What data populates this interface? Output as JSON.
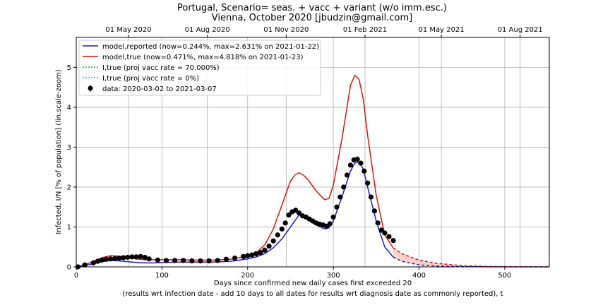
{
  "chart_data": {
    "type": "line",
    "title_line1": "Portugal, Scenario= seas. + vacc + variant (w/o imm.esc.)",
    "title_line2": "Vienna, October 2020 [jbudzin@gmail.com]",
    "xlabel_line1": "Days since confirmed new daily cases first exceeded 20",
    "xlabel_line2": "(results wrt infection date - add 10 days to all dates for results wrt diagnosis date as commonly reported), t",
    "ylabel": "Infected, I/N [% of population] (lin.scale-zoom)",
    "xlim": [
      0,
      552
    ],
    "ylim": [
      0,
      5.75
    ],
    "grid": true,
    "legend_position": "top-left",
    "x_ticks": [
      0,
      100,
      200,
      300,
      400,
      500
    ],
    "x_tick_labels": [
      "0",
      "100",
      "200",
      "300",
      "400",
      "500"
    ],
    "y_ticks": [
      0,
      1,
      2,
      3,
      4,
      5
    ],
    "y_tick_labels": [
      "0",
      "1",
      "2",
      "3",
      "4",
      "5"
    ],
    "top_axis_ticks": [
      61,
      153,
      245,
      337,
      426,
      518
    ],
    "top_axis_labels": [
      "01 May 2020",
      "01 Aug 2020",
      "01 Nov 2020",
      "01 Feb 2021",
      "01 May 2021",
      "01 Aug 2021"
    ],
    "legend": [
      "model,reported (now=0.244%, max=2.631% on 2021-01-22)",
      "model,true (now=0.471%, max=4.818% on 2021-01-23)",
      "I,true (proj vacc rate = 70.000%)",
      "I,true (proj vacc rate = 0%)",
      "data: 2020-03-02 to 2021-03-07"
    ],
    "colors": {
      "reported": "#1a1acc",
      "true": "#dd1111",
      "vacc70": "#11aa11",
      "vacc0": "#11bbdd",
      "data": "#000000",
      "projection_band": "#f7c9c0",
      "grid": "#b0b0b0"
    },
    "series": [
      {
        "name": "model,reported",
        "x": [
          0,
          10,
          20,
          30,
          40,
          50,
          60,
          70,
          80,
          90,
          100,
          120,
          140,
          160,
          180,
          200,
          210,
          220,
          230,
          240,
          250,
          255,
          260,
          265,
          270,
          280,
          290,
          295,
          300,
          310,
          320,
          325,
          330,
          335,
          340,
          350,
          360,
          370
        ],
        "y": [
          0,
          0.03,
          0.08,
          0.13,
          0.16,
          0.15,
          0.13,
          0.11,
          0.1,
          0.1,
          0.11,
          0.12,
          0.12,
          0.12,
          0.14,
          0.2,
          0.25,
          0.33,
          0.48,
          0.7,
          1.0,
          1.15,
          1.3,
          1.28,
          1.18,
          1.05,
          0.95,
          0.98,
          1.15,
          1.75,
          2.4,
          2.6,
          2.63,
          2.45,
          2.0,
          1.15,
          0.5,
          0.244
        ]
      },
      {
        "name": "model,true",
        "x": [
          0,
          10,
          20,
          30,
          40,
          50,
          60,
          70,
          80,
          90,
          100,
          120,
          140,
          160,
          180,
          200,
          210,
          220,
          230,
          240,
          250,
          255,
          260,
          265,
          270,
          280,
          290,
          295,
          300,
          310,
          320,
          325,
          330,
          335,
          340,
          350,
          360,
          370
        ],
        "y": [
          0,
          0.05,
          0.14,
          0.23,
          0.28,
          0.27,
          0.23,
          0.2,
          0.18,
          0.18,
          0.18,
          0.18,
          0.17,
          0.17,
          0.19,
          0.27,
          0.35,
          0.55,
          0.95,
          1.55,
          2.15,
          2.3,
          2.36,
          2.3,
          2.2,
          1.9,
          1.68,
          1.72,
          2.05,
          3.2,
          4.55,
          4.8,
          4.7,
          4.2,
          3.3,
          1.8,
          0.8,
          0.471
        ]
      },
      {
        "name": "model,reported projection",
        "x": [
          370,
          380,
          400,
          420,
          450,
          480,
          520,
          552
        ],
        "y": [
          0.244,
          0.14,
          0.05,
          0.02,
          0.006,
          0.002,
          0.0,
          0.0
        ]
      },
      {
        "name": "model,true projection",
        "x": [
          370,
          380,
          400,
          420,
          450,
          480,
          520,
          552
        ],
        "y": [
          0.471,
          0.33,
          0.17,
          0.09,
          0.03,
          0.01,
          0.002,
          0.0
        ]
      },
      {
        "name": "data",
        "x": [
          2,
          10,
          20,
          25,
          30,
          35,
          40,
          45,
          50,
          55,
          60,
          65,
          70,
          75,
          80,
          85,
          95,
          105,
          115,
          125,
          135,
          145,
          155,
          165,
          175,
          185,
          195,
          200,
          205,
          210,
          215,
          220,
          225,
          230,
          235,
          240,
          244,
          248,
          252,
          256,
          260,
          264,
          268,
          272,
          276,
          280,
          284,
          288,
          292,
          296,
          300,
          304,
          308,
          312,
          316,
          320,
          324,
          328,
          332,
          336,
          340,
          344,
          348,
          352,
          356,
          360,
          365,
          370
        ],
        "y": [
          0.0,
          0.05,
          0.1,
          0.14,
          0.17,
          0.19,
          0.2,
          0.21,
          0.22,
          0.23,
          0.24,
          0.25,
          0.25,
          0.26,
          0.24,
          0.2,
          0.17,
          0.16,
          0.16,
          0.16,
          0.15,
          0.15,
          0.15,
          0.16,
          0.19,
          0.22,
          0.26,
          0.28,
          0.3,
          0.33,
          0.36,
          0.42,
          0.52,
          0.65,
          0.8,
          0.95,
          1.1,
          1.3,
          1.38,
          1.42,
          1.35,
          1.28,
          1.25,
          1.2,
          1.15,
          1.1,
          1.07,
          1.05,
          1.02,
          1.08,
          1.25,
          1.5,
          1.75,
          2.0,
          2.3,
          2.55,
          2.68,
          2.7,
          2.6,
          2.4,
          2.1,
          1.75,
          1.4,
          1.1,
          0.92,
          0.85,
          0.76,
          0.66
        ]
      }
    ]
  }
}
